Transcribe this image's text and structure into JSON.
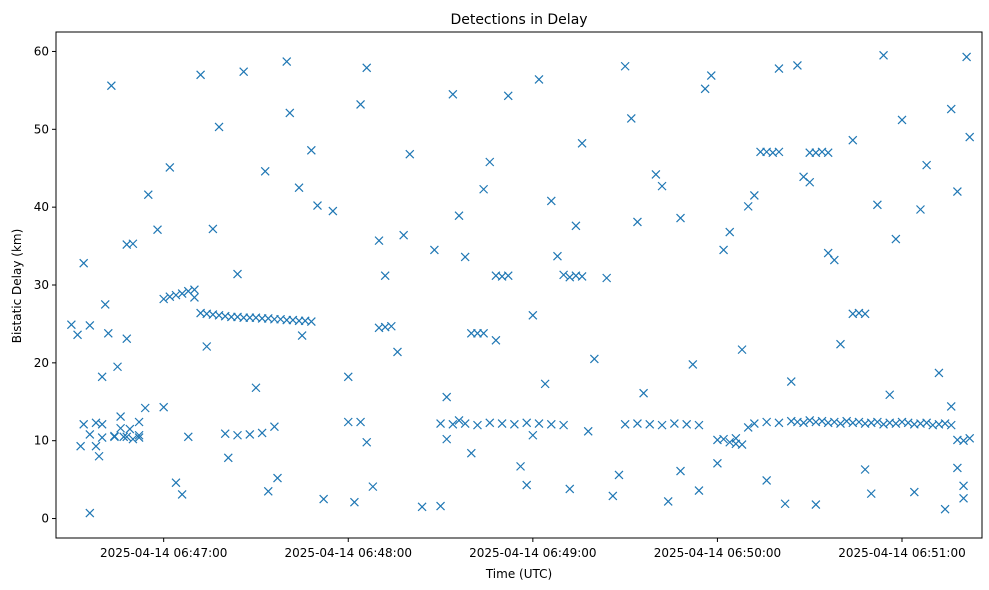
{
  "chart_data": {
    "type": "scatter",
    "title": "Detections in Delay",
    "xlabel": "Time (UTC)",
    "ylabel": "Bistatic Delay (km)",
    "marker": "x",
    "color": "#1f77b4",
    "x_ticks": [
      "2025-04-14 06:47:00",
      "2025-04-14 06:48:00",
      "2025-04-14 06:49:00",
      "2025-04-14 06:50:00",
      "2025-04-14 06:51:00"
    ],
    "y_ticks": [
      0,
      10,
      20,
      30,
      40,
      50,
      60
    ],
    "xlim": [
      "2025-04-14 06:46:25",
      "2025-04-14 06:51:26"
    ],
    "ylim": [
      -2.5,
      62.5
    ],
    "grid": false,
    "legend": null,
    "x": [
      "2025-04-14 06:46:34",
      "2025-04-14 06:46:41",
      "2025-04-14 06:46:48",
      "2025-04-14 06:46:55",
      "2025-04-14 06:47:02",
      "2025-04-14 06:47:10",
      "2025-04-14 06:47:18",
      "2025-04-14 06:47:26",
      "2025-04-14 06:47:33",
      "2025-04-14 06:47:41",
      "2025-04-14 06:47:48",
      "2025-04-14 06:47:55",
      "2025-04-14 06:48:04",
      "2025-04-14 06:48:12",
      "2025-04-14 06:48:20",
      "2025-04-14 06:48:28",
      "2025-04-14 06:48:36",
      "2025-04-14 06:48:44",
      "2025-04-14 06:48:52",
      "2025-04-14 06:49:00",
      "2025-04-14 06:49:08",
      "2025-04-14 06:49:16",
      "2025-04-14 06:49:24",
      "2025-04-14 06:49:32",
      "2025-04-14 06:49:40",
      "2025-04-14 06:49:48",
      "2025-04-14 06:49:56",
      "2025-04-14 06:50:04",
      "2025-04-14 06:50:12",
      "2025-04-14 06:50:20",
      "2025-04-14 06:50:28",
      "2025-04-14 06:50:36",
      "2025-04-14 06:50:44",
      "2025-04-14 06:50:52",
      "2025-04-14 06:51:00",
      "2025-04-14 06:51:08",
      "2025-04-14 06:51:16",
      "2025-04-14 06:51:22",
      "2025-04-14 06:46:38",
      "2025-04-14 06:46:52",
      "2025-04-14 06:47:06",
      "2025-04-14 06:47:21",
      "2025-04-14 06:47:37",
      "2025-04-14 06:47:52",
      "2025-04-14 06:48:08",
      "2025-04-14 06:48:24",
      "2025-04-14 06:48:40",
      "2025-04-14 06:48:56",
      "2025-04-14 06:49:12",
      "2025-04-14 06:49:28",
      "2025-04-14 06:49:44",
      "2025-04-14 06:50:00",
      "2025-04-14 06:50:16",
      "2025-04-14 06:50:32",
      "2025-04-14 06:50:48",
      "2025-04-14 06:51:04",
      "2025-04-14 06:51:20",
      "2025-04-14 06:46:45",
      "2025-04-14 06:47:00",
      "2025-04-14 06:47:14",
      "2025-04-14 06:47:30",
      "2025-04-14 06:47:45",
      "2025-04-14 06:48:00",
      "2025-04-14 06:48:16",
      "2025-04-14 06:48:32",
      "2025-04-14 06:48:48",
      "2025-04-14 06:49:04",
      "2025-04-14 06:49:20",
      "2025-04-14 06:49:36",
      "2025-04-14 06:49:52",
      "2025-04-14 06:50:08",
      "2025-04-14 06:50:24",
      "2025-04-14 06:50:40",
      "2025-04-14 06:50:56",
      "2025-04-14 06:51:12",
      "2025-04-14 06:46:30",
      "2025-04-14 06:46:58",
      "2025-04-14 06:47:24",
      "2025-04-14 06:47:50",
      "2025-04-14 06:48:18",
      "2025-04-14 06:48:46",
      "2025-04-14 06:49:14",
      "2025-04-14 06:49:42",
      "2025-04-14 06:50:10",
      "2025-04-14 06:50:38",
      "2025-04-14 06:51:06",
      "2025-04-14 06:46:50",
      "2025-04-14 06:47:16",
      "2025-04-14 06:47:44",
      "2025-04-14 06:48:10",
      "2025-04-14 06:48:38",
      "2025-04-14 06:49:06",
      "2025-04-14 06:49:34",
      "2025-04-14 06:50:02",
      "2025-04-14 06:50:30",
      "2025-04-14 06:50:58",
      "2025-04-14 06:51:18",
      "2025-04-14 06:46:36",
      "2025-04-14 06:47:04",
      "2025-04-14 06:47:34",
      "2025-04-14 06:48:02",
      "2025-04-14 06:48:30",
      "2025-04-14 06:48:58",
      "2025-04-14 06:49:26",
      "2025-04-14 06:49:54",
      "2025-04-14 06:50:22",
      "2025-04-14 06:50:50",
      "2025-04-14 06:51:14",
      "2025-04-14 06:46:43",
      "2025-04-14 06:47:12",
      "2025-04-14 06:47:40",
      "2025-04-14 06:48:06",
      "2025-04-14 06:48:34",
      "2025-04-14 06:49:02",
      "2025-04-14 06:49:30",
      "2025-04-14 06:49:58",
      "2025-04-14 06:50:26",
      "2025-04-14 06:50:54",
      "2025-04-14 06:51:21",
      "2025-04-14 06:46:32",
      "2025-04-14 06:46:33",
      "2025-04-14 06:46:34",
      "2025-04-14 06:46:36",
      "2025-04-14 06:46:38",
      "2025-04-14 06:46:39",
      "2025-04-14 06:46:40",
      "2025-04-14 06:46:42",
      "2025-04-14 06:46:44",
      "2025-04-14 06:46:46",
      "2025-04-14 06:46:47",
      "2025-04-14 06:46:48",
      "2025-04-14 06:46:49",
      "2025-04-14 06:46:50",
      "2025-04-14 06:46:52",
      "2025-04-14 06:47:00",
      "2025-04-14 06:47:02",
      "2025-04-14 06:47:04",
      "2025-04-14 06:47:06",
      "2025-04-14 06:47:08",
      "2025-04-14 06:47:10",
      "2025-04-14 06:47:12",
      "2025-04-14 06:47:14",
      "2025-04-14 06:47:16",
      "2025-04-14 06:47:18",
      "2025-04-14 06:47:20",
      "2025-04-14 06:47:22",
      "2025-04-14 06:47:24",
      "2025-04-14 06:47:26",
      "2025-04-14 06:47:28",
      "2025-04-14 06:47:30",
      "2025-04-14 06:47:32",
      "2025-04-14 06:47:34",
      "2025-04-14 06:47:36",
      "2025-04-14 06:47:38",
      "2025-04-14 06:47:40",
      "2025-04-14 06:47:42",
      "2025-04-14 06:47:44",
      "2025-04-14 06:47:46",
      "2025-04-14 06:47:48",
      "2025-04-14 06:48:10",
      "2025-04-14 06:48:12",
      "2025-04-14 06:48:14",
      "2025-04-14 06:48:40",
      "2025-04-14 06:48:42",
      "2025-04-14 06:48:44",
      "2025-04-14 06:48:48",
      "2025-04-14 06:48:50",
      "2025-04-14 06:48:52",
      "2025-04-14 06:49:10",
      "2025-04-14 06:49:12",
      "2025-04-14 06:49:14",
      "2025-04-14 06:49:16",
      "2025-04-14 06:50:14",
      "2025-04-14 06:50:16",
      "2025-04-14 06:50:18",
      "2025-04-14 06:50:20",
      "2025-04-14 06:50:30",
      "2025-04-14 06:50:32",
      "2025-04-14 06:50:34",
      "2025-04-14 06:50:36",
      "2025-04-14 06:50:44",
      "2025-04-14 06:50:46",
      "2025-04-14 06:50:48",
      "2025-04-14 06:46:36",
      "2025-04-14 06:46:40",
      "2025-04-14 06:46:44",
      "2025-04-14 06:46:48",
      "2025-04-14 06:46:52",
      "2025-04-14 06:47:20",
      "2025-04-14 06:47:24",
      "2025-04-14 06:47:28",
      "2025-04-14 06:47:32",
      "2025-04-14 06:48:00",
      "2025-04-14 06:48:04",
      "2025-04-14 06:48:30",
      "2025-04-14 06:48:34",
      "2025-04-14 06:48:38",
      "2025-04-14 06:48:42",
      "2025-04-14 06:48:46",
      "2025-04-14 06:48:50",
      "2025-04-14 06:48:54",
      "2025-04-14 06:48:58",
      "2025-04-14 06:49:02",
      "2025-04-14 06:49:06",
      "2025-04-14 06:49:10",
      "2025-04-14 06:49:30",
      "2025-04-14 06:49:34",
      "2025-04-14 06:49:38",
      "2025-04-14 06:49:42",
      "2025-04-14 06:49:46",
      "2025-04-14 06:49:50",
      "2025-04-14 06:49:54",
      "2025-04-14 06:50:00",
      "2025-04-14 06:50:02",
      "2025-04-14 06:50:04",
      "2025-04-14 06:50:06",
      "2025-04-14 06:50:08",
      "2025-04-14 06:50:12",
      "2025-04-14 06:50:16",
      "2025-04-14 06:50:20",
      "2025-04-14 06:50:24",
      "2025-04-14 06:50:26",
      "2025-04-14 06:50:28",
      "2025-04-14 06:50:30",
      "2025-04-14 06:50:32",
      "2025-04-14 06:50:34",
      "2025-04-14 06:50:36",
      "2025-04-14 06:50:38",
      "2025-04-14 06:50:40",
      "2025-04-14 06:50:42",
      "2025-04-14 06:50:44",
      "2025-04-14 06:50:46",
      "2025-04-14 06:50:48",
      "2025-04-14 06:50:50",
      "2025-04-14 06:50:52",
      "2025-04-14 06:50:54",
      "2025-04-14 06:50:56",
      "2025-04-14 06:50:58",
      "2025-04-14 06:51:00",
      "2025-04-14 06:51:02",
      "2025-04-14 06:51:04",
      "2025-04-14 06:51:06",
      "2025-04-14 06:51:08",
      "2025-04-14 06:51:10",
      "2025-04-14 06:51:12",
      "2025-04-14 06:51:14",
      "2025-04-14 06:51:16",
      "2025-04-14 06:51:18",
      "2025-04-14 06:51:20",
      "2025-04-14 06:51:22",
      "2025-04-14 06:46:40",
      "2025-04-14 06:46:46",
      "2025-04-14 06:46:54",
      "2025-04-14 06:47:08",
      "2025-04-14 06:47:36",
      "2025-04-14 06:48:06",
      "2025-04-14 06:48:32",
      "2025-04-14 06:48:36",
      "2025-04-14 06:49:00",
      "2025-04-14 06:49:18",
      "2025-04-14 06:49:48",
      "2025-04-14 06:50:06",
      "2025-04-14 06:50:10",
      "2025-04-14 06:51:16",
      "2025-04-14 06:51:18",
      "2025-04-14 06:51:20"
    ],
    "y": [
      32.8,
      27.5,
      35.2,
      41.6,
      45.1,
      28.4,
      50.3,
      57.4,
      44.6,
      52.1,
      47.3,
      39.5,
      53.2,
      31.2,
      46.8,
      34.5,
      38.9,
      42.3,
      54.3,
      26.1,
      33.7,
      48.2,
      30.9,
      51.4,
      44.2,
      38.6,
      55.2,
      36.8,
      41.5,
      57.8,
      43.9,
      34.1,
      48.6,
      40.3,
      51.2,
      45.4,
      52.6,
      49.0,
      9.3,
      12.4,
      3.1,
      7.8,
      5.2,
      2.5,
      4.1,
      1.5,
      8.4,
      6.7,
      3.8,
      5.6,
      2.2,
      7.1,
      4.9,
      1.8,
      6.3,
      3.4,
      2.6,
      19.5,
      14.3,
      22.1,
      16.8,
      23.5,
      18.2,
      21.4,
      15.6,
      22.9,
      17.3,
      20.5,
      16.1,
      19.8,
      21.7,
      17.6,
      22.4,
      15.9,
      18.7,
      24.9,
      37.1,
      31.4,
      40.2,
      36.4,
      45.8,
      37.6,
      42.7,
      40.1,
      33.2,
      39.7,
      35.3,
      37.2,
      42.5,
      35.7,
      33.6,
      40.8,
      38.1,
      34.5,
      43.2,
      35.9,
      42.0,
      0.7,
      4.6,
      3.5,
      2.1,
      1.6,
      4.3,
      2.9,
      3.6,
      1.9,
      3.2,
      1.2,
      55.6,
      57.0,
      58.7,
      57.9,
      54.5,
      56.4,
      58.1,
      56.9,
      58.2,
      59.5,
      59.3,
      23.6,
      9.3,
      12.1,
      24.8,
      12.3,
      8.0,
      18.2,
      23.8,
      10.5,
      13.1,
      10.5,
      23.1,
      11.5,
      10.2,
      10.4,
      28.2,
      28.5,
      28.7,
      28.9,
      29.2,
      29.4,
      26.4,
      26.3,
      26.2,
      26.1,
      26.0,
      25.9,
      25.9,
      25.8,
      25.8,
      25.8,
      25.7,
      25.7,
      25.6,
      25.6,
      25.5,
      25.5,
      25.4,
      25.4,
      25.3,
      24.5,
      24.6,
      24.7,
      23.8,
      23.8,
      23.8,
      31.2,
      31.1,
      31.2,
      31.3,
      31.0,
      31.2,
      31.1,
      47.1,
      47.1,
      47.0,
      47.1,
      47.0,
      47.0,
      47.1,
      47.0,
      26.3,
      26.4,
      26.3,
      10.8,
      10.4,
      10.6,
      10.5,
      10.7,
      10.9,
      10.7,
      10.8,
      11.0,
      12.4,
      12.4,
      12.2,
      12.1,
      12.2,
      12.0,
      12.3,
      12.2,
      12.1,
      12.3,
      12.2,
      12.1,
      12.0,
      12.1,
      12.2,
      12.1,
      12.0,
      12.2,
      12.1,
      12.0,
      10.1,
      10.2,
      9.8,
      9.6,
      9.5,
      12.2,
      12.4,
      12.3,
      12.5,
      12.4,
      12.3,
      12.6,
      12.4,
      12.5,
      12.3,
      12.4,
      12.2,
      12.5,
      12.3,
      12.4,
      12.2,
      12.3,
      12.4,
      12.1,
      12.3,
      12.2,
      12.4,
      12.3,
      12.1,
      12.2,
      12.3,
      12.0,
      12.1,
      12.2,
      12.0,
      10.1,
      10.0,
      10.3,
      12.1,
      11.6,
      14.2,
      10.5,
      11.8,
      9.8,
      10.2,
      12.6,
      10.7,
      11.2,
      6.1,
      10.3,
      11.7,
      14.4,
      6.5,
      4.2
    ]
  }
}
